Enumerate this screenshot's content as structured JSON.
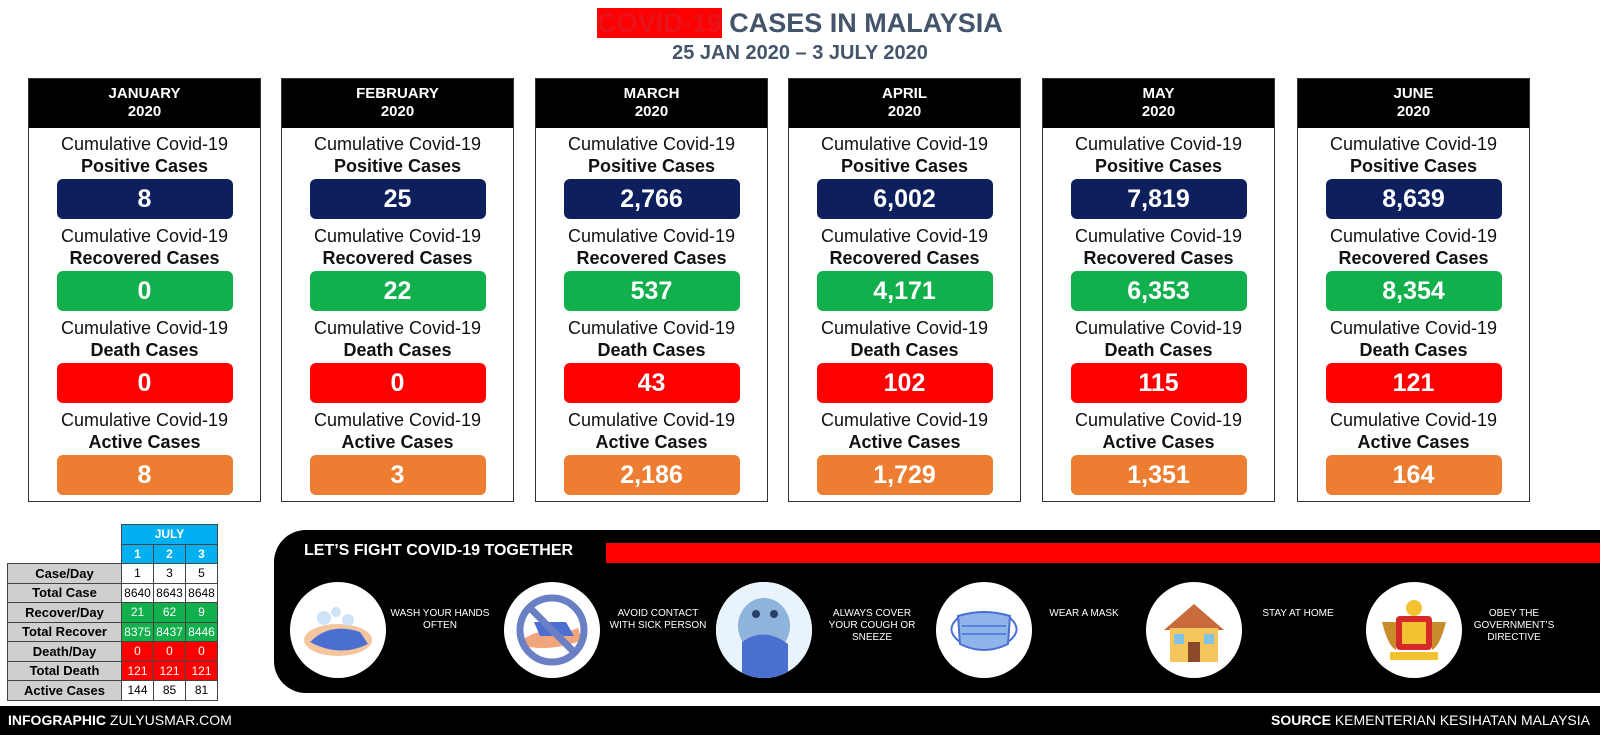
{
  "header": {
    "title_red": "COVID-19",
    "title_rest": "CASES IN MALAYSIA",
    "subtitle": "25 JAN 2020 – 3 JULY 2020"
  },
  "labels": {
    "cumulative": "Cumulative Covid-19",
    "positive": "Positive Cases",
    "recovered": "Recovered Cases",
    "death": "Death Cases",
    "active": "Active Cases"
  },
  "months": [
    {
      "name": "JANUARY",
      "year": "2020",
      "positive": "8",
      "recovered": "0",
      "death": "0",
      "active": "8"
    },
    {
      "name": "FEBRUARY",
      "year": "2020",
      "positive": "25",
      "recovered": "22",
      "death": "0",
      "active": "3"
    },
    {
      "name": "MARCH",
      "year": "2020",
      "positive": "2,766",
      "recovered": "537",
      "death": "43",
      "active": "2,186"
    },
    {
      "name": "APRIL",
      "year": "2020",
      "positive": "6,002",
      "recovered": "4,171",
      "death": "102",
      "active": "1,729"
    },
    {
      "name": "MAY",
      "year": "2020",
      "positive": "7,819",
      "recovered": "6,353",
      "death": "115",
      "active": "1,351"
    },
    {
      "name": "JUNE",
      "year": "2020",
      "positive": "8,639",
      "recovered": "8,354",
      "death": "121",
      "active": "164"
    }
  ],
  "july": {
    "title": "JULY",
    "days": [
      "1",
      "2",
      "3"
    ],
    "rows": [
      {
        "label": "Case/Day",
        "values": [
          "1",
          "3",
          "5"
        ]
      },
      {
        "label": "Total Case",
        "values": [
          "8640",
          "8643",
          "8648"
        ]
      },
      {
        "label": "Recover/Day",
        "values": [
          "21",
          "62",
          "9"
        ]
      },
      {
        "label": "Total Recover",
        "values": [
          "8375",
          "8437",
          "8446"
        ]
      },
      {
        "label": "Death/Day",
        "values": [
          "0",
          "0",
          "0"
        ]
      },
      {
        "label": "Total Death",
        "values": [
          "121",
          "121",
          "121"
        ]
      },
      {
        "label": "Active Cases",
        "values": [
          "144",
          "85",
          "81"
        ]
      }
    ]
  },
  "fight": {
    "title": "LET’S FIGHT COVID-19 TOGETHER",
    "tips": [
      {
        "icon": "wash-hands-icon",
        "text": "WASH YOUR HANDS OFTEN"
      },
      {
        "icon": "no-contact-icon",
        "text": "AVOID CONTACT WITH SICK PERSON"
      },
      {
        "icon": "cover-cough-icon",
        "text": "ALWAYS COVER YOUR COUGH OR SNEEZE"
      },
      {
        "icon": "mask-icon",
        "text": "WEAR A MASK"
      },
      {
        "icon": "home-icon",
        "text": "STAY AT HOME"
      },
      {
        "icon": "coat-of-arms-icon",
        "text": "OBEY THE GOVERNMENT’S DIRECTIVE"
      }
    ]
  },
  "footer": {
    "left_bold": "INFOGRAPHIC",
    "left_rest": "ZULYUSMAR.COM",
    "right_bold": "SOURCE",
    "right_rest": "KEMENTERIAN KESIHATAN MALAYSIA"
  },
  "colors": {
    "positive": "#0d1f5c",
    "recovered": "#12b04c",
    "death": "#fe0000",
    "active": "#ec7d31",
    "july_header": "#00b0f0"
  }
}
